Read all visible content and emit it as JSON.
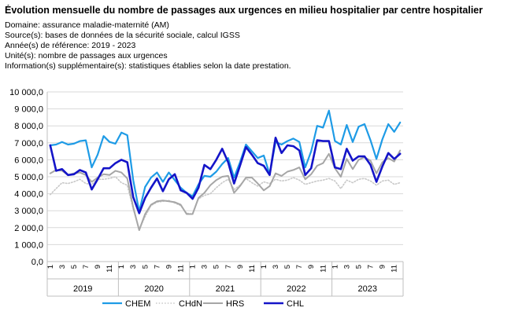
{
  "header": {
    "title": "Évolution mensuelle du nombre de passages aux urgences en milieu hospitalier par centre hospitalier",
    "meta": [
      "Domaine: assurance maladie-maternité (AM)",
      "Source(s): bases de données de la sécurité sociale, calcul IGSS",
      "Année(s) de référence: 2019 - 2023",
      "Unité(s): nombre de passages aux urgences",
      "Information(s) supplémentaire(s): statistiques établies selon la date prestation."
    ]
  },
  "chart_data": {
    "type": "line",
    "ylim": [
      0,
      10000
    ],
    "y_ticks": [
      "0,0",
      "1 000,0",
      "2 000,0",
      "3 000,0",
      "4 000,0",
      "5 000,0",
      "6 000,0",
      "7 000,0",
      "8 000,0",
      "9 000,0",
      "10 000,0"
    ],
    "month_ticks": [
      "1",
      "3",
      "5",
      "7",
      "9",
      "11"
    ],
    "years": [
      "2019",
      "2020",
      "2021",
      "2022",
      "2023"
    ],
    "grid": "horizontal",
    "legend_position": "bottom",
    "series": [
      {
        "name": "CHEM",
        "color": "#1e9be6",
        "style": "solid",
        "width": 2.2,
        "values": [
          6850,
          6900,
          7050,
          6900,
          6950,
          7100,
          7150,
          5550,
          6300,
          7400,
          7050,
          6950,
          7600,
          7450,
          4800,
          2950,
          4400,
          4950,
          5250,
          4700,
          5250,
          4800,
          4350,
          4050,
          3850,
          4550,
          5050,
          5000,
          5300,
          5750,
          6100,
          4950,
          5850,
          6900,
          6500,
          6100,
          6250,
          5150,
          7050,
          6900,
          7100,
          7250,
          7050,
          5550,
          6500,
          8000,
          7900,
          8900,
          7100,
          6900,
          8050,
          7050,
          7950,
          8100,
          7150,
          6050,
          7200,
          8100,
          7650,
          8200
        ]
      },
      {
        "name": "CHdN",
        "color": "#c8c8c8",
        "style": "dotted",
        "width": 1.6,
        "values": [
          3950,
          4300,
          4650,
          4600,
          4700,
          4850,
          4600,
          4550,
          4850,
          4850,
          4900,
          5000,
          4650,
          4500,
          3100,
          1900,
          2650,
          3300,
          3500,
          3550,
          3600,
          3450,
          3300,
          2850,
          2800,
          3700,
          3900,
          4000,
          4350,
          4650,
          4850,
          4250,
          4500,
          4900,
          4650,
          4450,
          4700,
          4600,
          4850,
          4750,
          4800,
          4950,
          4800,
          4550,
          4650,
          4750,
          4800,
          4900,
          4750,
          4300,
          4800,
          4650,
          4850,
          4900,
          4750,
          4500,
          4750,
          4800,
          4550,
          4650
        ]
      },
      {
        "name": "HRS",
        "color": "#a6a6a6",
        "style": "solid",
        "width": 2,
        "values": [
          5200,
          5400,
          5350,
          5100,
          5200,
          5250,
          5100,
          4700,
          4950,
          5150,
          5100,
          5350,
          5250,
          4900,
          3200,
          1850,
          2800,
          3350,
          3550,
          3600,
          3550,
          3500,
          3350,
          2800,
          2800,
          3750,
          4050,
          4500,
          4800,
          5000,
          5050,
          4050,
          4450,
          4950,
          4950,
          4600,
          4200,
          4450,
          5200,
          5050,
          5300,
          5400,
          5550,
          4850,
          5150,
          5650,
          5800,
          6350,
          5500,
          5000,
          6050,
          5450,
          6000,
          6150,
          5950,
          5200,
          5850,
          6100,
          5900,
          6550
        ]
      },
      {
        "name": "CHL",
        "color": "#1414c8",
        "style": "solid",
        "width": 2.6,
        "values": [
          6850,
          5350,
          5450,
          5100,
          5150,
          5400,
          5250,
          4250,
          4850,
          5500,
          5500,
          5800,
          6000,
          5850,
          3800,
          2850,
          3750,
          4350,
          4900,
          4150,
          4850,
          5150,
          4200,
          4050,
          3700,
          4350,
          5700,
          5450,
          6000,
          6650,
          5850,
          4600,
          5650,
          6750,
          6300,
          5800,
          5650,
          5100,
          7300,
          6400,
          6850,
          6800,
          6550,
          5100,
          5500,
          7150,
          7100,
          7100,
          5550,
          5450,
          6650,
          5950,
          6200,
          6200,
          5700,
          4700,
          5600,
          6400,
          6050,
          6350
        ]
      }
    ]
  }
}
